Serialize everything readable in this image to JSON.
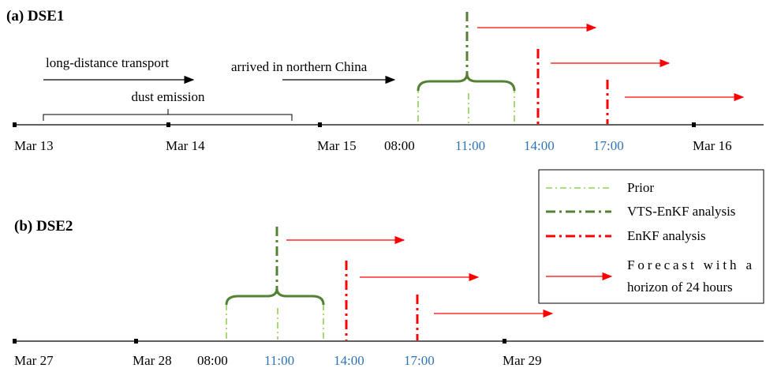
{
  "panels": [
    {
      "title": "(a) DSE1",
      "annotations": [
        "long-distance transport",
        "arrived in northern China",
        "dust emission"
      ],
      "dates": [
        "Mar 13",
        "Mar 14",
        "Mar 15",
        "Mar 16"
      ],
      "times": [
        "08:00",
        "11:00",
        "14:00",
        "17:00"
      ]
    },
    {
      "title": "(b) DSE2",
      "dates": [
        "Mar 27",
        "Mar 28",
        "Mar 29"
      ],
      "times": [
        "08:00",
        "11:00",
        "14:00",
        "17:00"
      ]
    }
  ],
  "legend": {
    "items": [
      "Prior",
      "VTS-EnKF analysis",
      "EnKF analysis"
    ],
    "forecast": [
      "Forecast with a",
      "horizon of 24 hours"
    ]
  }
}
